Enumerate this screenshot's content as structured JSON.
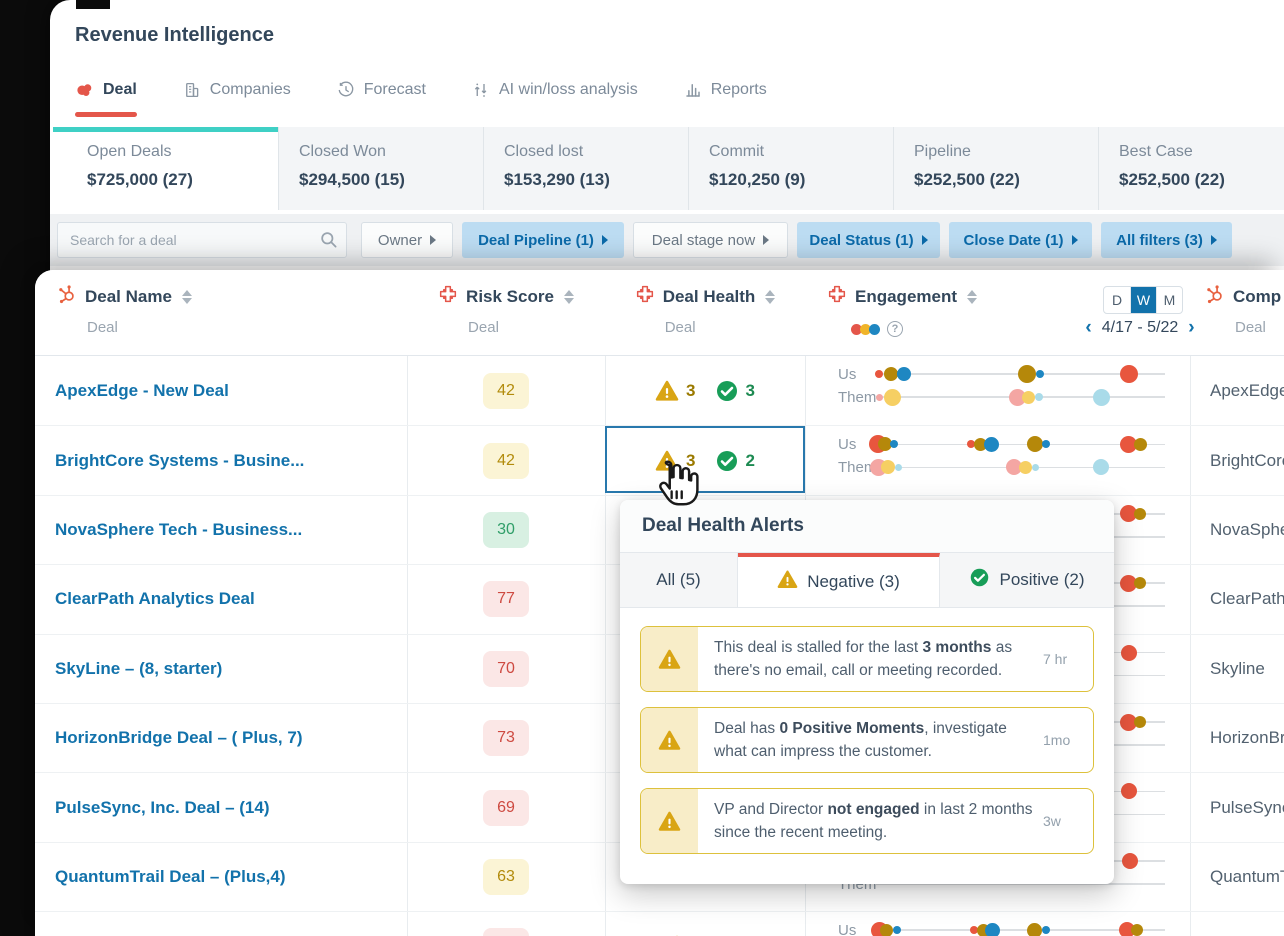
{
  "app": {
    "title": "Revenue Intelligence"
  },
  "nav_tabs": [
    {
      "label": "Deal",
      "active": true
    },
    {
      "label": "Companies"
    },
    {
      "label": "Forecast"
    },
    {
      "label": "AI win/loss analysis"
    },
    {
      "label": "Reports"
    }
  ],
  "summary_cards": [
    {
      "label": "Open Deals",
      "value": "$725,000 (27)",
      "active": true
    },
    {
      "label": "Closed Won",
      "value": "$294,500 (15)"
    },
    {
      "label": "Closed lost",
      "value": "$153,290 (13)"
    },
    {
      "label": "Commit",
      "value": "$120,250 (9)"
    },
    {
      "label": "Pipeline",
      "value": "$252,500 (22)"
    },
    {
      "label": "Best Case",
      "value": "$252,500 (22)"
    }
  ],
  "filter_bar": {
    "search_placeholder": "Search for a deal",
    "chips": [
      {
        "label": "Owner",
        "style": "plain"
      },
      {
        "label": "Deal Pipeline (1)",
        "style": "blue"
      },
      {
        "label": "Deal stage now",
        "style": "plain"
      },
      {
        "label": "Deal Status (1)",
        "style": "blue"
      },
      {
        "label": "Close Date (1)",
        "style": "blue"
      },
      {
        "label": "All filters (3)",
        "style": "blue"
      }
    ]
  },
  "table": {
    "columns": [
      {
        "title": "Deal Name",
        "sub": "Deal"
      },
      {
        "title": "Risk Score",
        "sub": "Deal"
      },
      {
        "title": "Deal Health",
        "sub": "Deal"
      },
      {
        "title": "Engagement"
      },
      {
        "title": "Comp",
        "sub": "Deal"
      }
    ],
    "engagement_controls": {
      "toggle": [
        "D",
        "W",
        "M"
      ],
      "active": "W",
      "range": "4/17 - 5/22",
      "prev": "‹",
      "next": "›",
      "help": "?",
      "us_label": "Us",
      "them_label": "Them",
      "legend_colors": [
        "#e4564a",
        "#f0b429",
        "#1e87c2"
      ]
    },
    "rows": [
      {
        "deal": "ApexEdge - New Deal",
        "risk": "42",
        "risk_tone": "yellow",
        "health": {
          "warn": "3",
          "pos": "3"
        },
        "company": "ApexEdge",
        "eng": {
          "us": [
            [
              0.015,
              8,
              "r"
            ],
            [
              0.055,
              14,
              "o"
            ],
            [
              0.1,
              14,
              "b"
            ],
            [
              0.525,
              18,
              "o"
            ],
            [
              0.57,
              8,
              "b"
            ],
            [
              0.875,
              18,
              "r"
            ]
          ],
          "them": [
            [
              0.015,
              7,
              "p"
            ],
            [
              0.06,
              17,
              "y"
            ],
            [
              0.49,
              17,
              "p"
            ],
            [
              0.53,
              13,
              "y"
            ],
            [
              0.565,
              8,
              "lb"
            ],
            [
              0.78,
              17,
              "lb"
            ]
          ]
        }
      },
      {
        "deal": "BrightCore Systems - Busine...",
        "risk": "42",
        "risk_tone": "yellow",
        "health": {
          "warn": "3",
          "pos": "2"
        },
        "selected": true,
        "company": "BrightCore",
        "eng": {
          "us": [
            [
              0.012,
              18,
              "r"
            ],
            [
              0.035,
              14,
              "o"
            ],
            [
              0.065,
              8,
              "b"
            ],
            [
              0.33,
              8,
              "r"
            ],
            [
              0.365,
              13,
              "o"
            ],
            [
              0.4,
              15,
              "b"
            ],
            [
              0.55,
              16,
              "o"
            ],
            [
              0.59,
              8,
              "b"
            ],
            [
              0.875,
              17,
              "r"
            ],
            [
              0.915,
              13,
              "o"
            ]
          ],
          "them": [
            [
              0.012,
              17,
              "p"
            ],
            [
              0.045,
              14,
              "y"
            ],
            [
              0.08,
              7,
              "lb"
            ],
            [
              0.48,
              16,
              "p"
            ],
            [
              0.52,
              13,
              "y"
            ],
            [
              0.555,
              7,
              "lb"
            ],
            [
              0.78,
              16,
              "lb"
            ]
          ]
        }
      },
      {
        "deal": "NovaSphere Tech - Business...",
        "risk": "30",
        "risk_tone": "green",
        "company": "NovaSphere",
        "eng": {
          "us": [
            [
              0.875,
              17,
              "r"
            ],
            [
              0.915,
              12,
              "o"
            ]
          ],
          "them": []
        }
      },
      {
        "deal": "ClearPath Analytics Deal",
        "risk": "77",
        "risk_tone": "red",
        "company": "ClearPath",
        "eng": {
          "us": [
            [
              0.875,
              17,
              "r"
            ],
            [
              0.915,
              12,
              "o"
            ]
          ],
          "them": []
        }
      },
      {
        "deal": "SkyLine – (8, starter)",
        "risk": "70",
        "risk_tone": "red",
        "company": "Skyline",
        "eng": {
          "us": [
            [
              0.875,
              16,
              "r"
            ]
          ],
          "them": []
        }
      },
      {
        "deal": "HorizonBridge Deal – ( Plus, 7)",
        "risk": "73",
        "risk_tone": "red",
        "company": "HorizonBridge",
        "eng": {
          "us": [
            [
              0.875,
              17,
              "r"
            ],
            [
              0.915,
              12,
              "o"
            ]
          ],
          "them": []
        }
      },
      {
        "deal": "PulseSync, Inc. Deal – (14)",
        "risk": "69",
        "risk_tone": "red",
        "company": "PulseSync",
        "eng": {
          "us": [
            [
              0.875,
              16,
              "r"
            ]
          ],
          "them": []
        }
      },
      {
        "deal": "QuantumTrail Deal – (Plus,4)",
        "risk": "63",
        "risk_tone": "yellow",
        "company": "QuantumTrail",
        "eng": {
          "us": [
            [
              0.88,
              16,
              "r"
            ]
          ],
          "them": []
        }
      },
      {
        "deal": "",
        "risk": "",
        "risk_tone": "red",
        "health": {
          "warn": "",
          "pos": ""
        },
        "company": "",
        "eng": {
          "us": [
            [
              0.015,
              17,
              "r"
            ],
            [
              0.04,
              13,
              "o"
            ],
            [
              0.075,
              8,
              "b"
            ],
            [
              0.34,
              8,
              "r"
            ],
            [
              0.375,
              13,
              "o"
            ],
            [
              0.405,
              15,
              "b"
            ],
            [
              0.55,
              15,
              "o"
            ],
            [
              0.59,
              8,
              "b"
            ],
            [
              0.87,
              16,
              "r"
            ],
            [
              0.905,
              12,
              "o"
            ]
          ],
          "them": []
        }
      }
    ]
  },
  "popup": {
    "title": "Deal Health Alerts",
    "tabs": [
      {
        "label": "All (5)"
      },
      {
        "label": "Negative (3)",
        "icon": "warning",
        "active": true
      },
      {
        "label": "Positive (2)",
        "icon": "check"
      }
    ],
    "alerts": [
      {
        "segments": [
          {
            "t": "This deal is stalled for the last "
          },
          {
            "t": "3 months",
            "b": true
          },
          {
            "t": " as there's no email, call or meeting recorded."
          }
        ],
        "age": "7 hr"
      },
      {
        "segments": [
          {
            "t": "Deal has "
          },
          {
            "t": "0 Positive Moments",
            "b": true
          },
          {
            "t": ", investigate what can impress the customer."
          }
        ],
        "age": "1mo"
      },
      {
        "segments": [
          {
            "t": "VP and Director "
          },
          {
            "t": "not engaged",
            "b": true
          },
          {
            "t": " in last 2 months since the recent meeting."
          }
        ],
        "age": "3w"
      }
    ]
  },
  "colors": {
    "css_vars": {
      "accent-red": "#e4564a",
      "link-blue": "#1272ab",
      "teal": "#3fd0c5",
      "text-dark": "#33475b",
      "text-gray": "#7c8a99",
      "chip-blue-bg": "#bcdcf2",
      "chip-blue-text": "#0b6aa9",
      "warn-gold": "#d9a514",
      "success-green": "#189d58",
      "selected-blue": "#2878ad",
      "by-bg": "#fbf4d5",
      "by-tx": "#b28b0c",
      "bg-bg": "#d8f0e2",
      "bg-tx": "#2f9e68",
      "br-bg": "#fbe7e6",
      "br-tx": "#ce4a41"
    },
    "dots": {
      "r": "#e8563e",
      "o": "#b5880a",
      "b": "#1e87c2",
      "y": "#f6cf63",
      "p": "#f4a6a3",
      "lb": "#a9dbe9"
    }
  }
}
